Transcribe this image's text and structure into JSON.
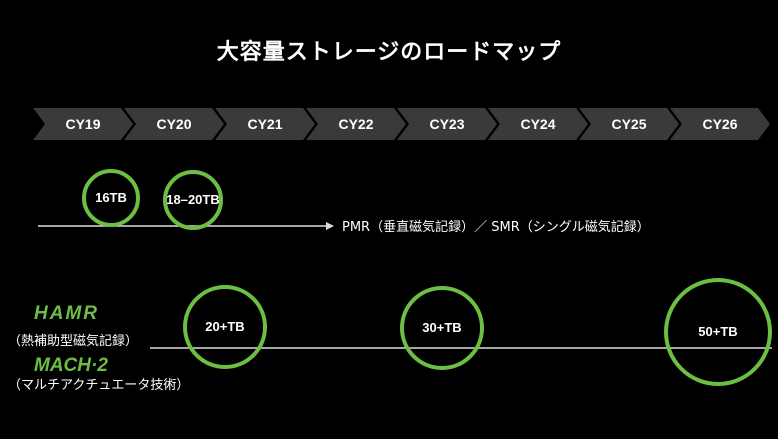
{
  "title": "大容量ストレージのロードマップ",
  "years": [
    "CY19",
    "CY20",
    "CY21",
    "CY22",
    "CY23",
    "CY24",
    "CY25",
    "CY26"
  ],
  "pmr": {
    "label": "PMR（垂直磁気記録）／ SMR（シングル磁気記録）",
    "milestones": [
      "16TB",
      "18–20TB"
    ]
  },
  "hamr": {
    "logo1": "HAMR",
    "label1": "（熱補助型磁気記録）",
    "logo2": "MACH·2",
    "label2": "（マルチアクチュエータ技術）",
    "milestones": [
      "20+TB",
      "30+TB",
      "50+TB"
    ]
  },
  "colors": {
    "accent": "#6cbf43",
    "chevron": "#3a3a3a",
    "background": "#000000"
  }
}
